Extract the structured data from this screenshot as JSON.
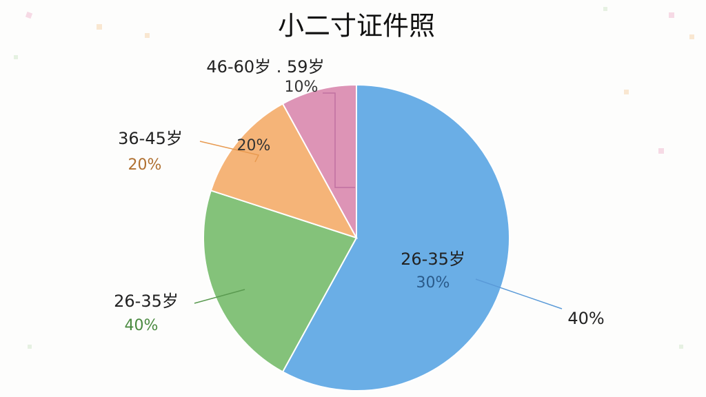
{
  "chart_data": {
    "type": "pie",
    "title": "小二寸证件照",
    "values": [
      58,
      22,
      12,
      8
    ],
    "colors": [
      "#6aaee6",
      "#84c27a",
      "#f5b478",
      "#dd94b6"
    ],
    "annotations": [
      "46-60岁 . 59岁",
      "10%",
      "36-45岁",
      "20%",
      "20%",
      "26-35岁",
      "40%",
      "26-35岁",
      "30%",
      "40%"
    ]
  }
}
